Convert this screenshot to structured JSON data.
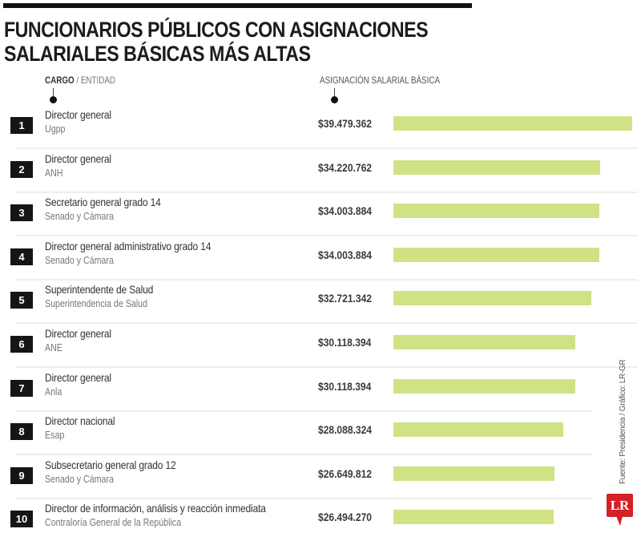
{
  "header": {
    "title_line1": "FUNCIONARIOS PÚBLICOS CON ASIGNACIONES",
    "title_line2": "SALARIALES BÁSICAS MÁS ALTAS",
    "col_cargo": "CARGO",
    "col_sep": " / ",
    "col_entidad": "ENTIDAD",
    "col_amount": "ASIGNACIÓN SALARIAL BÁSICA"
  },
  "rows": [
    {
      "rank": "1",
      "cargo": "Director general",
      "entidad": "Ugpp",
      "amount": "$39.479.362"
    },
    {
      "rank": "2",
      "cargo": "Director general",
      "entidad": "ANH",
      "amount": "$34.220.762"
    },
    {
      "rank": "3",
      "cargo": "Secretario general grado 14",
      "entidad": "Senado y Cámara",
      "amount": "$34.003.884"
    },
    {
      "rank": "4",
      "cargo": "Director general administrativo grado 14",
      "entidad": "Senado y Cámara",
      "amount": "$34.003.884"
    },
    {
      "rank": "5",
      "cargo": "Superintendente de Salud",
      "entidad": "Superintendencia de Salud",
      "amount": "$32.721.342"
    },
    {
      "rank": "6",
      "cargo": "Director general",
      "entidad": "ANE",
      "amount": "$30.118.394"
    },
    {
      "rank": "7",
      "cargo": "Director general",
      "entidad": "Anla",
      "amount": "$30.118.394"
    },
    {
      "rank": "8",
      "cargo": "Director nacional",
      "entidad": "Esap",
      "amount": "$28.088.324"
    },
    {
      "rank": "9",
      "cargo": "Subsecretario general grado 12",
      "entidad": "Senado y Cámara",
      "amount": "$26.649.812"
    },
    {
      "rank": "10",
      "cargo": "Director de información, análisis y reacción inmediata",
      "entidad": "Contraloría General de la República",
      "amount": "$26.494.270"
    }
  ],
  "footer": {
    "source": "Fuente: Presidencia / Gráfico: LR-GR",
    "logo": "LR"
  },
  "colors": {
    "bar": "#cfe384",
    "rank_box": "#151515",
    "logo": "#d42027"
  },
  "chart_data": {
    "type": "bar",
    "orientation": "horizontal",
    "title": "Funcionarios públicos con asignaciones salariales básicas más altas",
    "xlabel": "Asignación salarial básica (COP)",
    "ylabel": "Cargo / Entidad",
    "categories": [
      "Director general (Ugpp)",
      "Director general (ANH)",
      "Secretario general grado 14 (Senado y Cámara)",
      "Director general administrativo grado 14 (Senado y Cámara)",
      "Superintendente de Salud (Superintendencia de Salud)",
      "Director general (ANE)",
      "Director general (Anla)",
      "Director nacional (Esap)",
      "Subsecretario general grado 12 (Senado y Cámara)",
      "Director de información, análisis y reacción inmediata (Contraloría General de la República)"
    ],
    "values": [
      39479362,
      34220762,
      34003884,
      34003884,
      32721342,
      30118394,
      30118394,
      28088324,
      26649812,
      26494270
    ],
    "grid": false,
    "legend": null,
    "source": "Fuente: Presidencia / Gráfico: LR-GR"
  }
}
